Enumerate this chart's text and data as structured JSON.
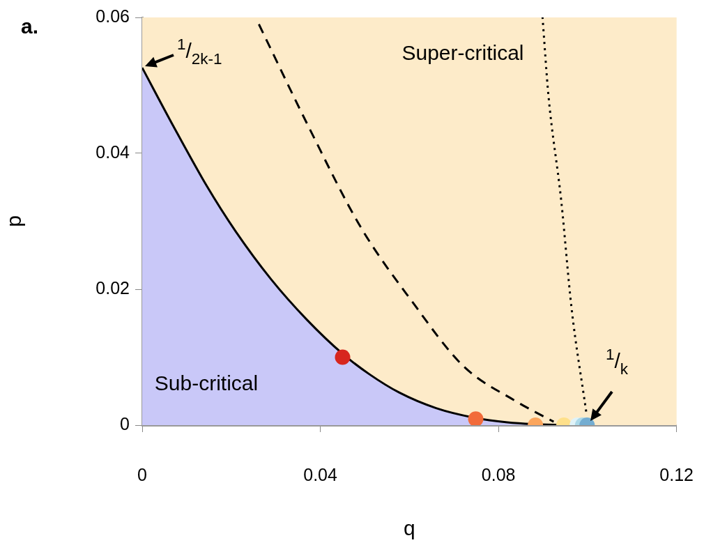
{
  "chart_data": {
    "type": "area",
    "xlabel": "q",
    "ylabel": "p",
    "xlim": [
      0,
      0.12
    ],
    "xticks": [
      0,
      0.04,
      0.08,
      0.12
    ],
    "ylim": [
      0,
      0.06
    ],
    "yticks": [
      0,
      0.02,
      0.04,
      0.06
    ],
    "grid": false,
    "legend": false,
    "bands": [
      {
        "axis": "y",
        "from": 0,
        "to": 0.06,
        "color": "#fdebc9"
      }
    ],
    "series": [
      {
        "color": "#c9c8f8",
        "line_style": "solid",
        "marker": "none",
        "x": [
          0,
          0.007,
          0.0145,
          0.021,
          0.0289,
          0.037,
          0.045,
          0.051,
          0.0577,
          0.066,
          0.0745,
          0.082,
          0.0895,
          0.1
        ],
        "values": [
          0.0526,
          0.044,
          0.0352,
          0.0285,
          0.0215,
          0.0155,
          0.0105,
          0.0075,
          0.0048,
          0.0025,
          0.0011,
          0.0004,
          0.0001,
          0
        ]
      },
      {
        "type": "line",
        "color": "#000000",
        "line_style": "dashed",
        "marker": "none",
        "x": [
          0.0262,
          0.0376,
          0.0491,
          0.0606,
          0.0721,
          0.0837,
          0.0924
        ],
        "values": [
          0.059,
          0.0436,
          0.0291,
          0.0182,
          0.0087,
          0.0036,
          0.0005
        ]
      },
      {
        "type": "line",
        "color": "#000000",
        "line_style": "dotted",
        "marker": "none",
        "x": [
          0.0997,
          0.0964,
          0.0941,
          0.0912,
          0.0899
        ],
        "values": [
          0.002,
          0.0173,
          0.033,
          0.0487,
          0.06
        ]
      },
      {
        "type": "scatter",
        "marker": "circle",
        "colors": [
          "#d7261e",
          "#f26b3a",
          "#fba55c",
          "#fee08b",
          "#e0f3f8",
          "#abd9e9",
          "#74add1"
        ],
        "x": [
          0.045,
          0.0749,
          0.0883,
          0.0947,
          0.0977,
          0.0989,
          0.0999
        ],
        "values": [
          0.01,
          0.0009,
          0,
          0,
          0,
          0,
          0
        ]
      }
    ],
    "annotations": [
      "a.",
      "Super-critical",
      "Sub-critical",
      {
        "text": "$^{1}$/$_{2k-1}$",
        "x": 0,
        "y": 0.0526
      },
      {
        "text": "$^{1}$/$_{k}$",
        "x": 0.1,
        "y": 0
      }
    ]
  }
}
